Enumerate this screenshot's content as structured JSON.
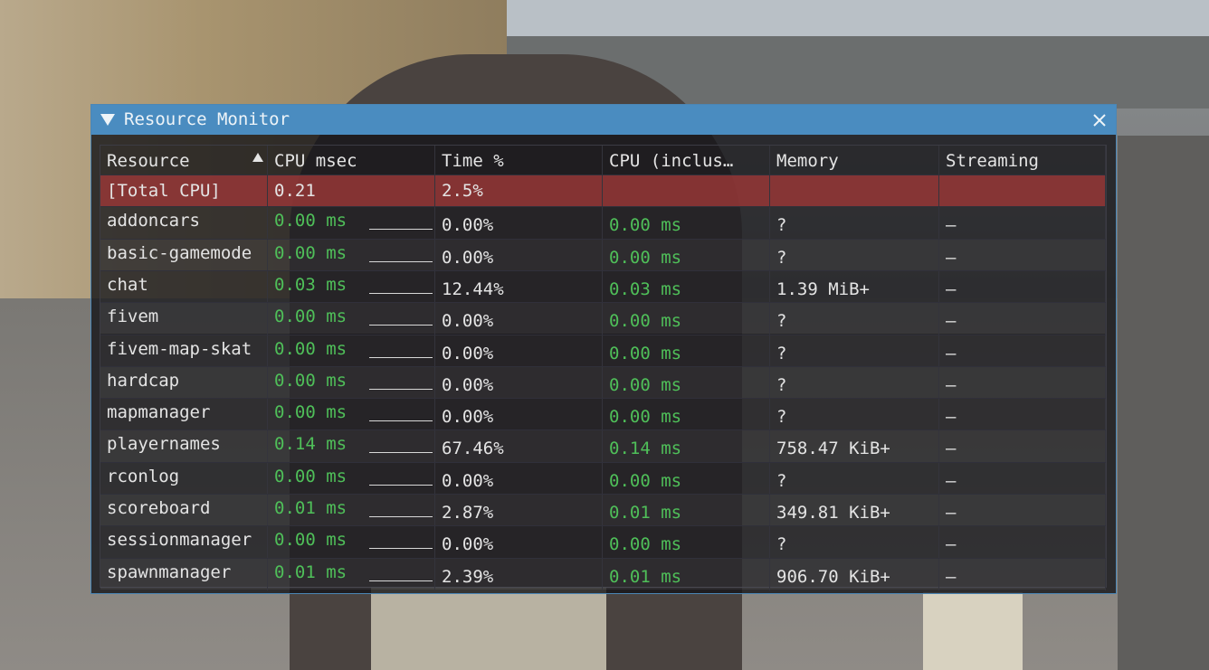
{
  "window": {
    "title": "Resource Monitor"
  },
  "table": {
    "headers": [
      "Resource",
      "CPU msec",
      "Time %",
      "CPU (inclus…",
      "Memory",
      "Streaming"
    ],
    "rows": [
      [
        "[Total CPU]",
        "0.21",
        "2.5%"
      ],
      [
        "addoncars",
        "0.00 ms",
        "0.00%",
        "0.00 ms",
        "?",
        "–"
      ],
      [
        "basic-gamemode",
        "0.00 ms",
        "0.00%",
        "0.00 ms",
        "?",
        "–"
      ],
      [
        "chat",
        "0.03 ms",
        "12.44%",
        "0.03 ms",
        "1.39 MiB+",
        "–"
      ],
      [
        "fivem",
        "0.00 ms",
        "0.00%",
        "0.00 ms",
        "?",
        "–"
      ],
      [
        "fivem-map-skat",
        "0.00 ms",
        "0.00%",
        "0.00 ms",
        "?",
        "–"
      ],
      [
        "hardcap",
        "0.00 ms",
        "0.00%",
        "0.00 ms",
        "?",
        "–"
      ],
      [
        "mapmanager",
        "0.00 ms",
        "0.00%",
        "0.00 ms",
        "?",
        "–"
      ],
      [
        "playernames",
        "0.14 ms",
        "67.46%",
        "0.14 ms",
        "758.47 KiB+",
        "–"
      ],
      [
        "rconlog",
        "0.00 ms",
        "0.00%",
        "0.00 ms",
        "?",
        "–"
      ],
      [
        "scoreboard",
        "0.01 ms",
        "2.87%",
        "0.01 ms",
        "349.81 KiB+",
        "–"
      ],
      [
        "sessionmanager",
        "0.00 ms",
        "0.00%",
        "0.00 ms",
        "?",
        "–"
      ],
      [
        "spawnmanager",
        "0.01 ms",
        "2.39%",
        "0.01 ms",
        "906.70 KiB+",
        "–"
      ]
    ]
  }
}
